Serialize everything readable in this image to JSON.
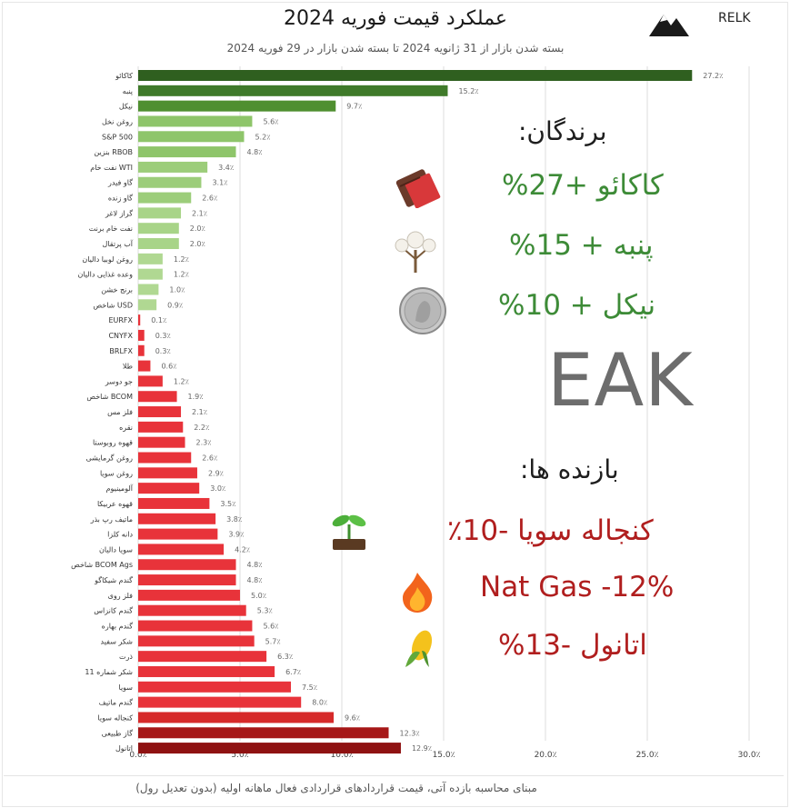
{
  "header": {
    "title": "عملکرد قیمت فوریه 2024",
    "subtitle": "بسته شدن بازار از 31 ژانویه 2024 تا بسته شدن بازار در 29 فوریه 2024",
    "logo_text": "RELK"
  },
  "watermark": "EAK",
  "winners": {
    "heading": "برندگان:",
    "items": [
      {
        "text": "کاکائو +27%",
        "icon": "chocolate-icon"
      },
      {
        "text": "پنبه + 15%",
        "icon": "cotton-icon"
      },
      {
        "text": "نیکل + 10%",
        "icon": "nickel-coin-icon"
      }
    ],
    "color": "#3d8b37"
  },
  "losers": {
    "heading": "بازنده ها:",
    "items": [
      {
        "text": "کنجاله سویا -10٪",
        "icon": "sprout-icon"
      },
      {
        "text": "Nat Gas -12%",
        "icon": "fire-icon"
      },
      {
        "text": "اتانول -13%",
        "icon": "corn-icon"
      }
    ],
    "color": "#b01e1e"
  },
  "footer": "مبنای محاسبه بازده آتی، قیمت قراردادهای قراردادی فعال ماهانه اولیه (بدون تعدیل رول)",
  "chart_data": {
    "type": "bar",
    "orientation": "horizontal",
    "xlim": [
      0,
      30
    ],
    "xticks": [
      "0.0٪",
      "5.0٪",
      "10.0٪",
      "15.0٪",
      "20.0٪",
      "25.0٪",
      "30.0٪"
    ],
    "grid": true,
    "categories": [
      "کاکائو",
      "پنبه",
      "نیکل",
      "روغن نخل",
      "S&P 500",
      "بنزین RBOB",
      "نفت خام WTI",
      "گاو فیدر",
      "گاو زنده",
      "گراز لاغر",
      "نفت خام برنت",
      "آب پرتقال",
      "روغن لوبیا دالیان",
      "وعده غذایی دالیان",
      "برنج خشن",
      "شاخص USD",
      "EURFX",
      "CNYFX",
      "BRLFX",
      "طلا",
      "جو دوسر",
      "شاخص BCOM",
      "فلز مس",
      "نقره",
      "قهوه روبوستا",
      "روغن گرمایشی",
      "روغن سویا",
      "آلومینیوم",
      "قهوه عربیکا",
      "ماتیف رپ بذر",
      "دانه کلزا",
      "سویا دالیان",
      "شاخص BCOM Ags",
      "گندم شیکاگو",
      "فلز روی",
      "گندم کانزاس",
      "گندم بهاره",
      "شکر سفید",
      "ذرت",
      "شکر شماره 11",
      "سویا",
      "گندم ماتیف",
      "کنجاله سویا",
      "گاز طبیعی",
      "اتانول"
    ],
    "values": [
      27.2,
      15.2,
      9.7,
      5.6,
      5.2,
      4.8,
      3.4,
      3.1,
      2.6,
      2.1,
      2.0,
      2.0,
      1.2,
      1.2,
      1.0,
      0.9,
      -0.1,
      -0.3,
      -0.3,
      -0.6,
      -1.2,
      -1.9,
      -2.1,
      -2.2,
      -2.3,
      -2.6,
      -2.9,
      -3.0,
      -3.5,
      -3.8,
      -3.9,
      -4.2,
      -4.8,
      -4.8,
      -5.0,
      -5.3,
      -5.6,
      -5.7,
      -6.3,
      -6.7,
      -7.5,
      -8.0,
      -9.6,
      -12.3,
      -12.9
    ],
    "value_labels": [
      "27.2٪",
      "15.2٪",
      "9.7٪",
      "5.6٪",
      "5.2٪",
      "4.8٪",
      "3.4٪",
      "3.1٪",
      "2.6٪",
      "2.1٪",
      "2.0٪",
      "2.0٪",
      "1.2٪",
      "1.2٪",
      "1.0٪",
      "0.9٪",
      "0.1٪",
      "0.3٪",
      "0.3٪",
      "0.6٪",
      "1.2٪",
      "1.9٪",
      "2.1٪",
      "2.2٪",
      "2.3٪",
      "2.6٪",
      "2.9٪",
      "3.0٪",
      "3.5٪",
      "3.8٪",
      "3.9٪",
      "4.2٪",
      "4.8٪",
      "4.8٪",
      "5.0٪",
      "5.3٪",
      "5.6٪",
      "5.7٪",
      "6.3٪",
      "6.7٪",
      "7.5٪",
      "8.0٪",
      "9.6٪",
      "12.3٪",
      "12.9٪"
    ],
    "positive_colors": [
      "#2f5f1f",
      "#3f7a2a",
      "#4f8f30",
      "#8ec56a",
      "#8ec56a",
      "#8ec56a",
      "#9ccd7a",
      "#9ccd7a",
      "#9ccd7a",
      "#a8d488",
      "#a8d488",
      "#a8d488",
      "#b0d892",
      "#b0d892",
      "#b0d892",
      "#b0d892"
    ],
    "negative_color": "#e8333a",
    "deep_negative_colors": {
      "کنجاله سویا": "#d62a2a",
      "گاز طبیعی": "#a61717",
      "اتانول": "#8f1212"
    }
  }
}
